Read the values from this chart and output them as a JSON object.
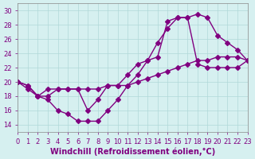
{
  "xlabel": "Windchill (Refroidissement éolien,°C)",
  "bg_color": "#d6f0f0",
  "line_color": "#800080",
  "xlim": [
    0,
    23
  ],
  "ylim": [
    13,
    31
  ],
  "yticks": [
    14,
    16,
    18,
    20,
    22,
    24,
    26,
    28,
    30
  ],
  "xticks": [
    0,
    1,
    2,
    3,
    4,
    5,
    6,
    7,
    8,
    9,
    10,
    11,
    12,
    13,
    14,
    15,
    16,
    17,
    18,
    19,
    20,
    21,
    22,
    23
  ],
  "line1_x": [
    0,
    1,
    2,
    3,
    4,
    5,
    6,
    7,
    8,
    9,
    10,
    11,
    12,
    13,
    14,
    15,
    16,
    17,
    18,
    19,
    20,
    21,
    22,
    23
  ],
  "line1_y": [
    20,
    19.5,
    18.0,
    17.5,
    16.0,
    15.5,
    14.5,
    14.5,
    14.5,
    16.0,
    17.5,
    19.5,
    21.0,
    23.0,
    25.5,
    27.5,
    29.0,
    29.0,
    29.5,
    29.0,
    26.5,
    25.5,
    24.5,
    23.0
  ],
  "line2_x": [
    0,
    1,
    2,
    3,
    4,
    5,
    6,
    7,
    8,
    9,
    10,
    11,
    12,
    13,
    14,
    15,
    16,
    17,
    18,
    19,
    20,
    21,
    22,
    23
  ],
  "line2_y": [
    20,
    19.0,
    18.0,
    19.0,
    19.0,
    19.0,
    19.0,
    16.0,
    17.5,
    19.5,
    19.5,
    21.0,
    22.5,
    23.0,
    23.5,
    28.5,
    29.0,
    29.0,
    22.5,
    22.0,
    22.0,
    22.0,
    22.0,
    23.0
  ],
  "line3_x": [
    0,
    1,
    2,
    3,
    4,
    5,
    6,
    7,
    8,
    9,
    10,
    11,
    12,
    13,
    14,
    15,
    16,
    17,
    18,
    19,
    20,
    21,
    22,
    23
  ],
  "line3_y": [
    20.0,
    19.5,
    18.0,
    18.0,
    19.0,
    19.0,
    19.0,
    19.0,
    19.0,
    19.5,
    19.5,
    19.5,
    20.0,
    20.5,
    21.0,
    21.5,
    22.0,
    22.5,
    23.0,
    23.0,
    23.5,
    23.5,
    23.5,
    23.0
  ],
  "marker": "D",
  "markersize": 3,
  "linewidth": 1.0,
  "grid_color": "#b0d8d8",
  "tick_fontsize": 6,
  "xlabel_fontsize": 7
}
